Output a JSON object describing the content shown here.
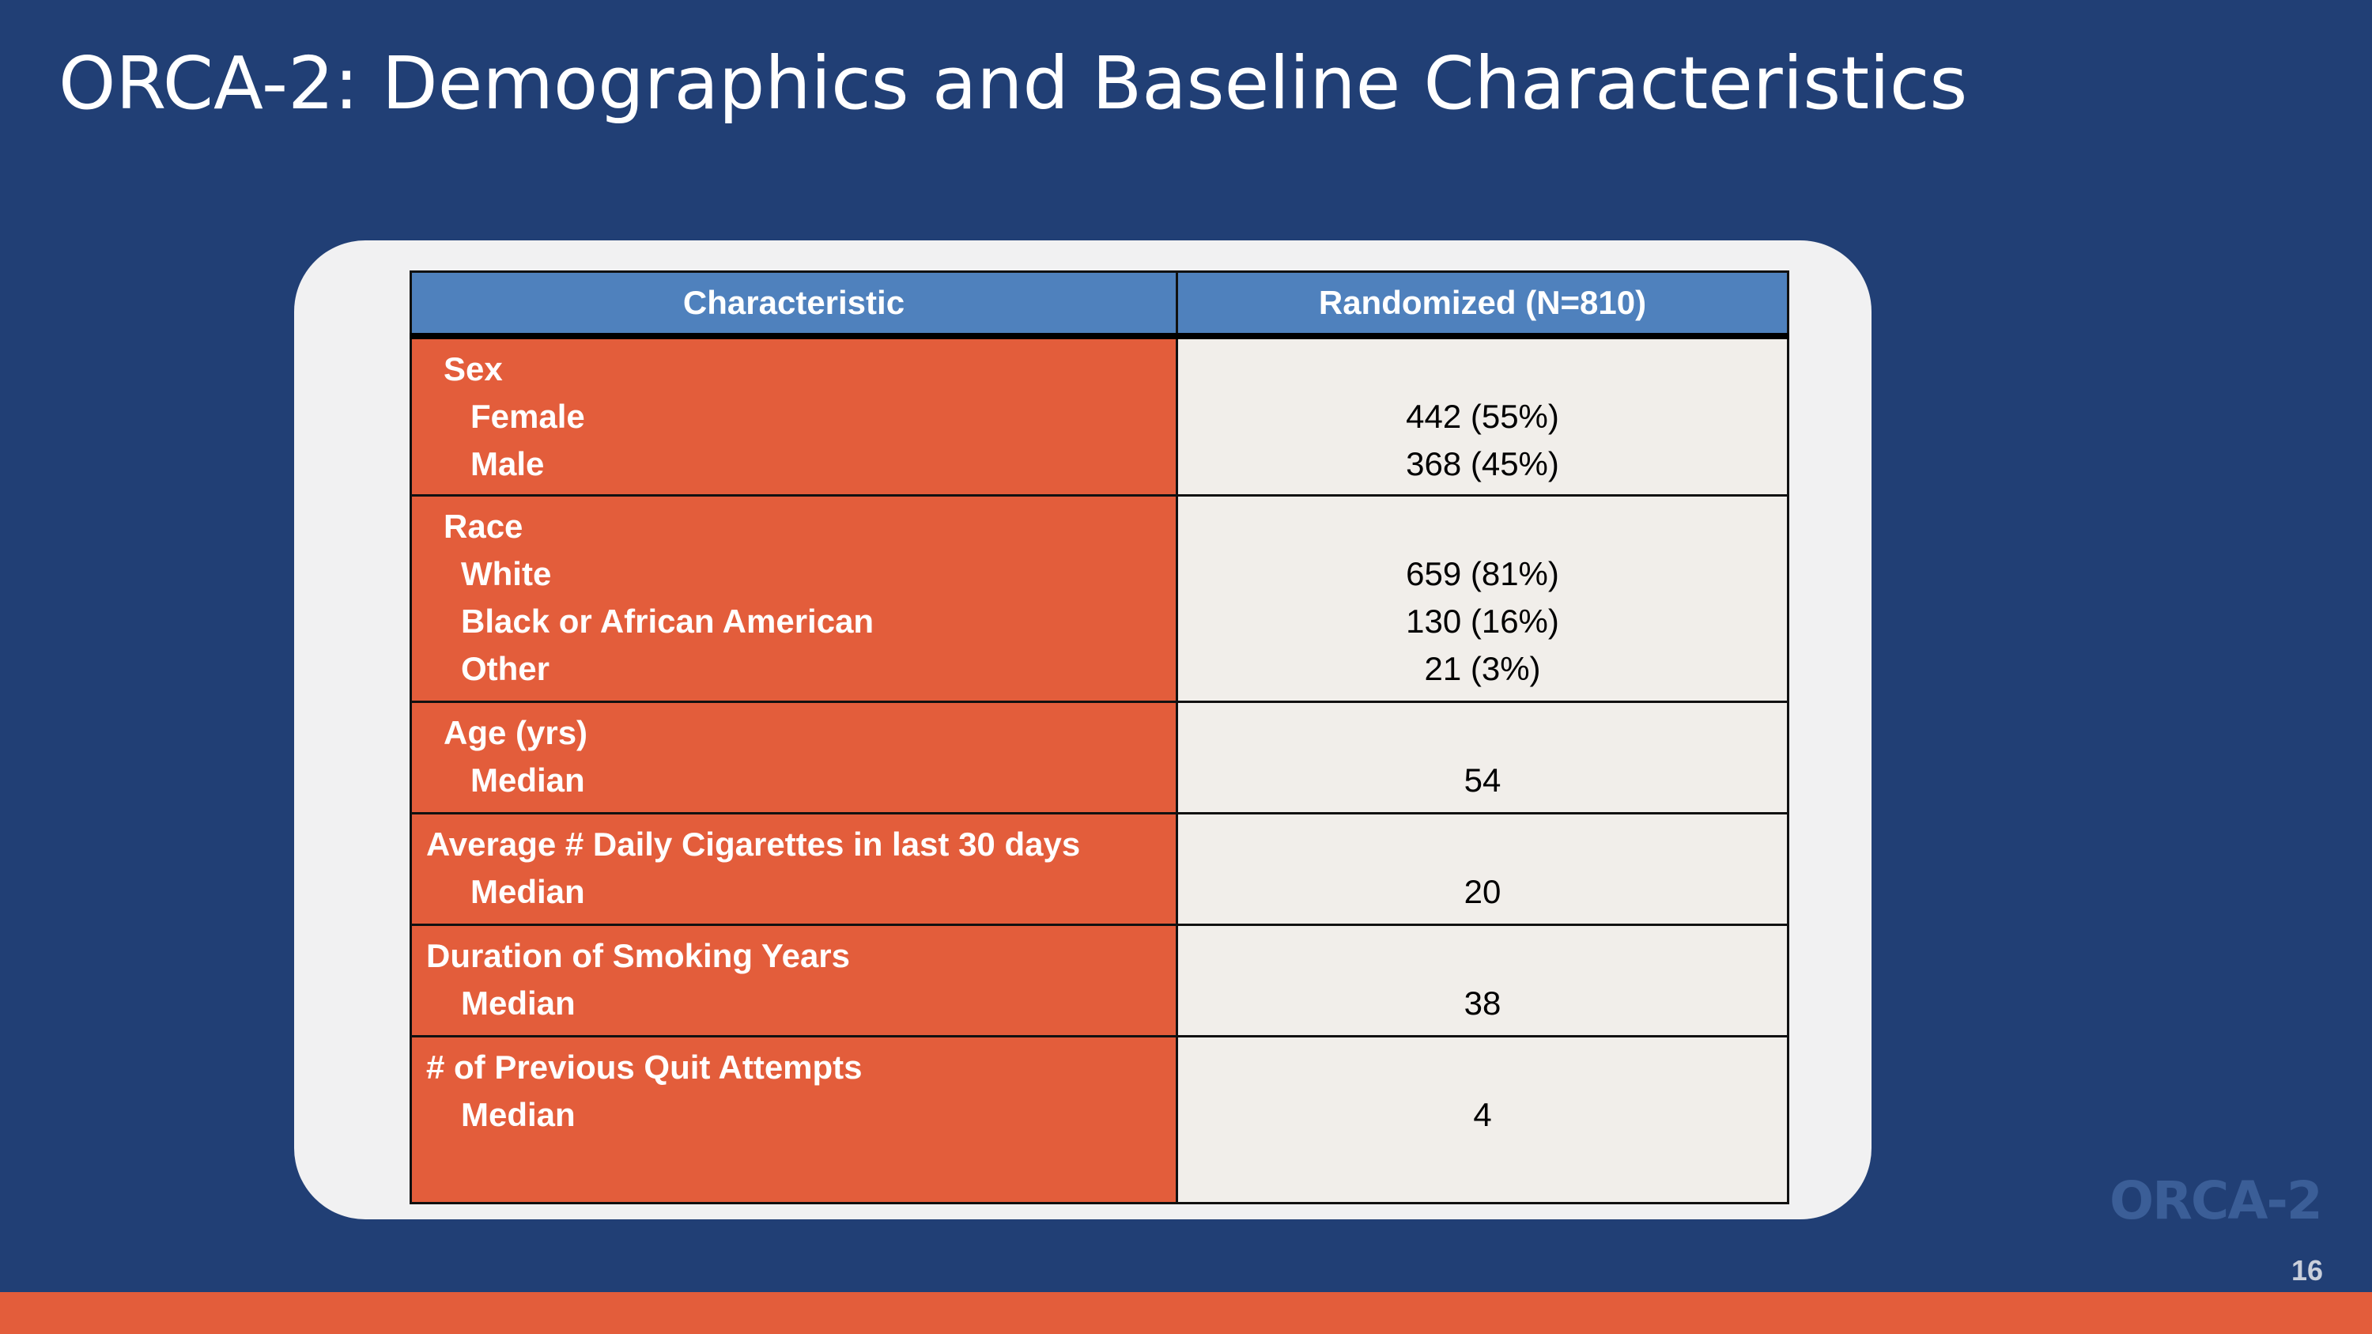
{
  "slide": {
    "title": "ORCA-2: Demographics and Baseline Characteristics",
    "page_number": "16",
    "logo_text": "ORCA-2"
  },
  "table": {
    "headers": {
      "characteristic": "Characteristic",
      "randomized": "Randomized (N=810)"
    },
    "rows": {
      "sex": {
        "label": "Sex",
        "female_label": "Female",
        "female_value": "442 (55%)",
        "male_label": "Male",
        "male_value": "368 (45%)"
      },
      "race": {
        "label": "Race",
        "white_label": "White",
        "white_value": "659 (81%)",
        "black_label": "Black or African American",
        "black_value": "130 (16%)",
        "other_label": "Other",
        "other_value": "21 (3%)"
      },
      "age": {
        "label": "Age (yrs)",
        "median_label": "Median",
        "median_value": "54"
      },
      "cigarettes": {
        "label": "Average # Daily Cigarettes in last 30 days",
        "median_label": "Median",
        "median_value": "20"
      },
      "duration": {
        "label": "Duration of Smoking Years",
        "median_label": "Median",
        "median_value": "38"
      },
      "quit_attempts": {
        "label": "# of Previous Quit Attempts",
        "median_label": "Median",
        "median_value": "4"
      }
    }
  },
  "colors": {
    "background": "#213f75",
    "header": "#4f81bd",
    "characteristic_cell": "#e35d3b",
    "value_cell": "#f1eeea",
    "footer_bar": "#e35d3b"
  }
}
